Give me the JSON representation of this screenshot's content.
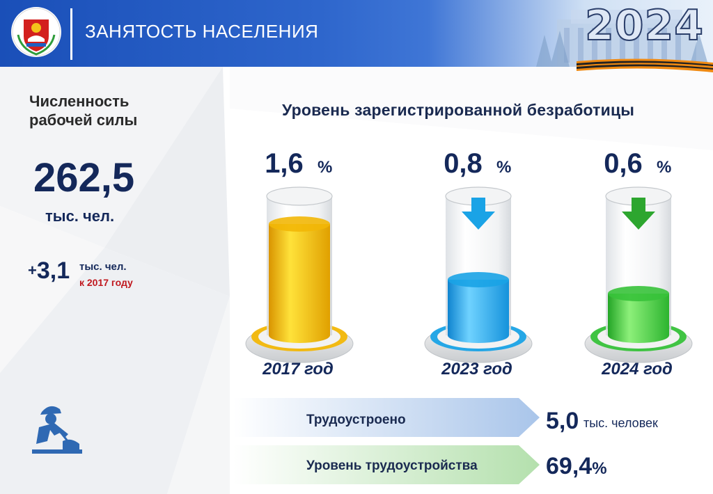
{
  "header": {
    "title": "ЗАНЯТОСТЬ НАСЕЛЕНИЯ",
    "year": "2024",
    "crest_icon": "coat-of-arms-icon"
  },
  "left": {
    "workforce_label_line1": "Численность",
    "workforce_label_line2": "рабочей силы",
    "workforce_value": "262,5",
    "workforce_unit": "тыс. чел.",
    "change_sign": "+",
    "change_value": "3,1",
    "change_unit": "тыс. чел.",
    "change_reference": "к 2017 году",
    "worker_icon": "worker-shovel-icon"
  },
  "chart_data": {
    "type": "bar",
    "title": "Уровень зарегистрированной безработицы",
    "categories": [
      "2017 год",
      "2023 год",
      "2024 год"
    ],
    "values": [
      1.6,
      0.8,
      0.6
    ],
    "value_labels": [
      "1,6",
      "0,8",
      "0,6"
    ],
    "unit": "%",
    "ylim": [
      0,
      2.0
    ],
    "colors": [
      "#f2b707",
      "#1aa3e6",
      "#37c23a"
    ],
    "trend_icons": [
      "",
      "arrow-down-icon",
      "arrow-down-icon"
    ],
    "trend_colors": [
      "",
      "#1aa3e6",
      "#2da62f"
    ]
  },
  "rows": {
    "employed_label": "Трудоустроено",
    "employed_value": "5,0",
    "employed_unit": "тыс. человек",
    "rate_label": "Уровень трудоустройства",
    "rate_value": "69,4",
    "rate_unit": "%"
  },
  "colors": {
    "header_blue": "#1a4fb8",
    "text_dark": "#14285a",
    "accent_red": "#c0181e"
  }
}
